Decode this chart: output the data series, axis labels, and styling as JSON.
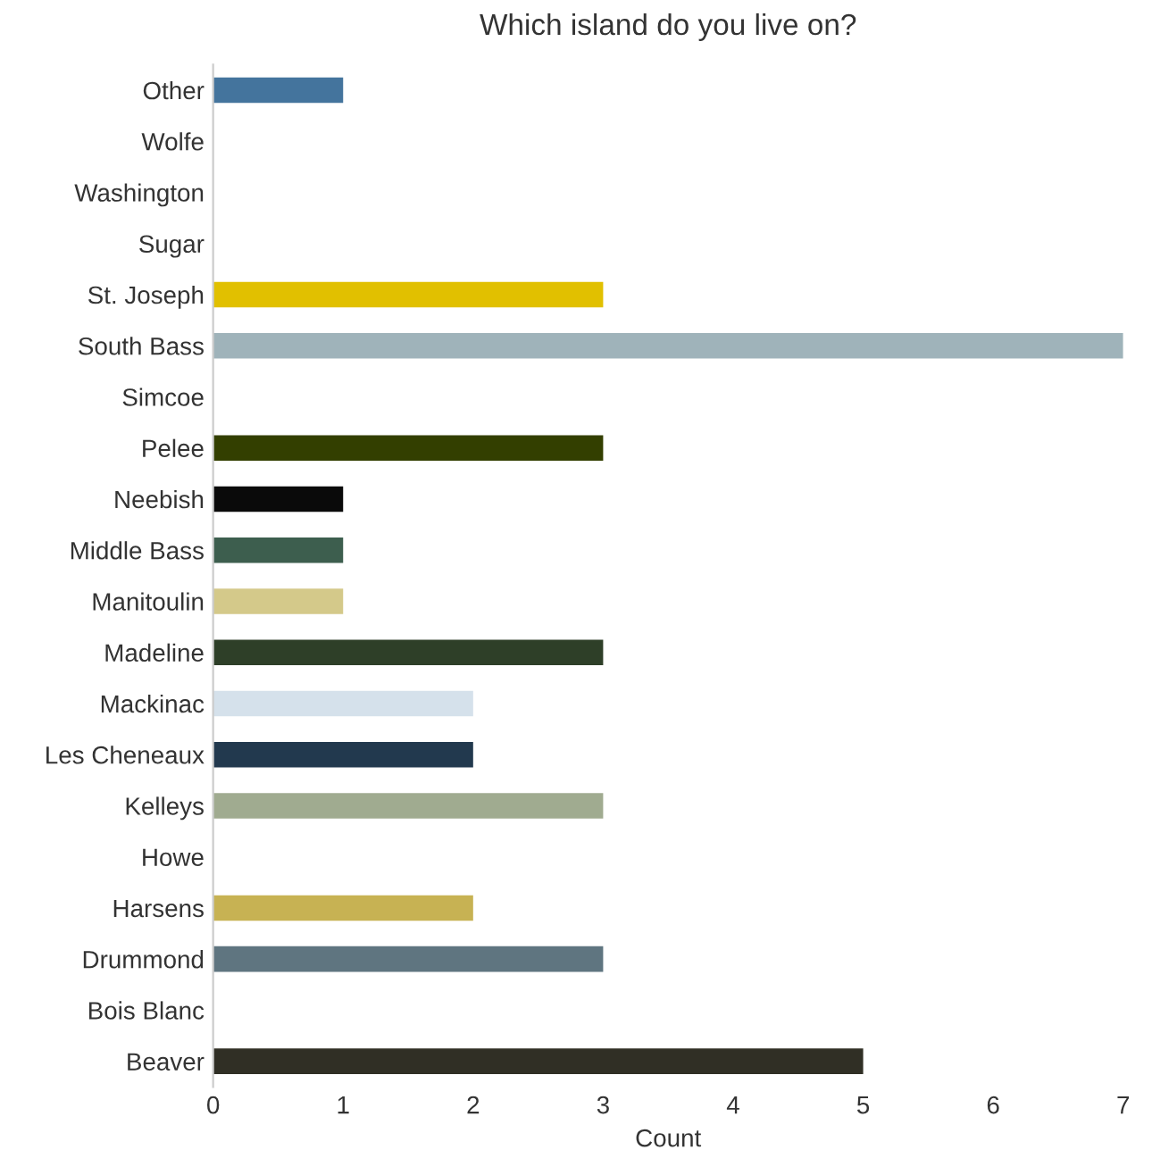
{
  "chart_data": {
    "type": "bar",
    "orientation": "horizontal",
    "title": "Which island do you live on?",
    "xlabel": "Count",
    "categories": [
      "Other",
      "Wolfe",
      "Washington",
      "Sugar",
      "St. Joseph",
      "South Bass",
      "Simcoe",
      "Pelee",
      "Neebish",
      "Middle Bass",
      "Manitoulin",
      "Madeline",
      "Mackinac",
      "Les Cheneaux",
      "Kelleys",
      "Howe",
      "Harsens",
      "Drummond",
      "Bois Blanc",
      "Beaver"
    ],
    "values": [
      1,
      0,
      0,
      0,
      3,
      7,
      0,
      3,
      1,
      1,
      1,
      3,
      2,
      2,
      3,
      0,
      2,
      3,
      0,
      5
    ],
    "colors": [
      "#44749d",
      null,
      null,
      null,
      "#e1c000",
      "#9fb3ba",
      null,
      "#333f00",
      "#0a0a0a",
      "#3d5e4e",
      "#d4c98a",
      "#2e3f28",
      "#d5e1eb",
      "#22394e",
      "#a0ab90",
      null,
      "#c7b253",
      "#5f7580",
      null,
      "#302f25"
    ],
    "xlim": [
      0,
      7
    ],
    "xticks": [
      0,
      1,
      2,
      3,
      4,
      5,
      6,
      7
    ],
    "grid": false,
    "legend": false
  }
}
